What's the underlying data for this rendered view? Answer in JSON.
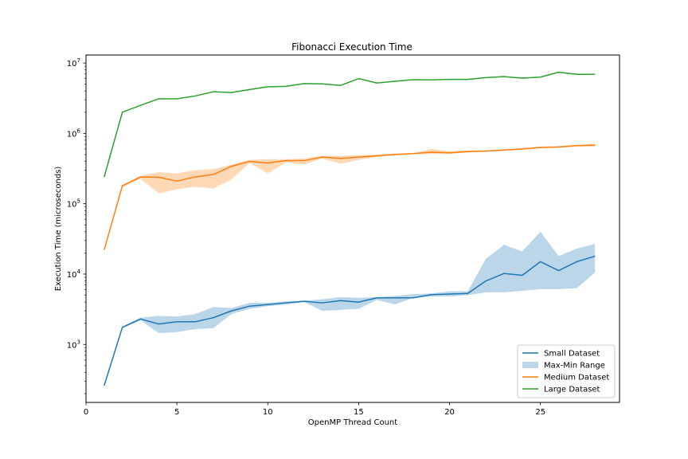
{
  "chart_data": {
    "type": "line",
    "title": "Fibonacci Execution Time",
    "xlabel": "OpenMP Thread Count",
    "ylabel": "Execution Time (microseconds)",
    "yscale": "log",
    "xlim": [
      0,
      29.35
    ],
    "ylim": [
      150,
      13000000
    ],
    "xticks": [
      0,
      5,
      10,
      15,
      20,
      25
    ],
    "yticks": [
      1000,
      10000,
      100000,
      1000000,
      10000000
    ],
    "ytick_labels": [
      {
        "base": "10",
        "exp": "3"
      },
      {
        "base": "10",
        "exp": "4"
      },
      {
        "base": "10",
        "exp": "5"
      },
      {
        "base": "10",
        "exp": "6"
      },
      {
        "base": "10",
        "exp": "7"
      }
    ],
    "legend_position": "lower-right",
    "x": [
      1,
      2,
      3,
      4,
      5,
      6,
      7,
      8,
      9,
      10,
      11,
      12,
      13,
      14,
      15,
      16,
      17,
      18,
      19,
      20,
      21,
      22,
      23,
      24,
      25,
      26,
      27,
      28
    ],
    "series": [
      {
        "name": "Small Dataset",
        "color": "#1f77b4",
        "values": [
          260,
          1750,
          2300,
          1950,
          2100,
          2100,
          2400,
          3000,
          3500,
          3700,
          3900,
          4100,
          3900,
          4200,
          4000,
          4600,
          4600,
          4600,
          5100,
          5200,
          5300,
          8000,
          10200,
          9600,
          15000,
          11200,
          15000,
          18000
        ],
        "range": {
          "name": "Max-Min Range",
          "color": "#1f77b4",
          "opacity": 0.3,
          "min": [
            260,
            1700,
            2200,
            1450,
            1500,
            1650,
            1700,
            2700,
            3200,
            3500,
            3700,
            4000,
            3000,
            3100,
            3200,
            4300,
            3700,
            4600,
            4800,
            4800,
            5000,
            5500,
            5500,
            5800,
            6100,
            6100,
            6300,
            10500
          ],
          "max": [
            260,
            1800,
            2400,
            2550,
            2500,
            2700,
            3400,
            3300,
            3900,
            3900,
            4100,
            4200,
            4400,
            4700,
            4600,
            4700,
            4900,
            5200,
            5300,
            5700,
            5700,
            16500,
            26000,
            21000,
            40000,
            18000,
            23000,
            27000
          ]
        }
      },
      {
        "name": "Medium Dataset",
        "color": "#ff7f0e",
        "values": [
          22000,
          180000,
          240000,
          238000,
          210000,
          240000,
          260000,
          340000,
          400000,
          380000,
          410000,
          410000,
          460000,
          440000,
          460000,
          480000,
          500000,
          515000,
          540000,
          530000,
          550000,
          560000,
          580000,
          600000,
          630000,
          640000,
          670000,
          680000
        ],
        "range": {
          "color": "#ff7f0e",
          "opacity": 0.3,
          "min": [
            22000,
            170000,
            225000,
            140000,
            160000,
            175000,
            165000,
            220000,
            380000,
            270000,
            385000,
            360000,
            440000,
            370000,
            420000,
            460000,
            495000,
            505000,
            510000,
            510000,
            535000,
            550000,
            565000,
            590000,
            615000,
            630000,
            650000,
            650000
          ],
          "max": [
            22000,
            185000,
            250000,
            280000,
            270000,
            300000,
            310000,
            360000,
            420000,
            430000,
            430000,
            440000,
            480000,
            480000,
            490000,
            500000,
            520000,
            525000,
            600000,
            560000,
            570000,
            575000,
            590000,
            620000,
            650000,
            660000,
            690000,
            710000
          ]
        }
      },
      {
        "name": "Large Dataset",
        "color": "#2ca02c",
        "values": [
          240000,
          2000000,
          2500000,
          3100000,
          3100000,
          3400000,
          3900000,
          3800000,
          4200000,
          4600000,
          4650000,
          5100000,
          5050000,
          4800000,
          6000000,
          5200000,
          5500000,
          5800000,
          5750000,
          5850000,
          5850000,
          6200000,
          6400000,
          6100000,
          6300000,
          7400000,
          6900000,
          6900000
        ]
      }
    ]
  }
}
